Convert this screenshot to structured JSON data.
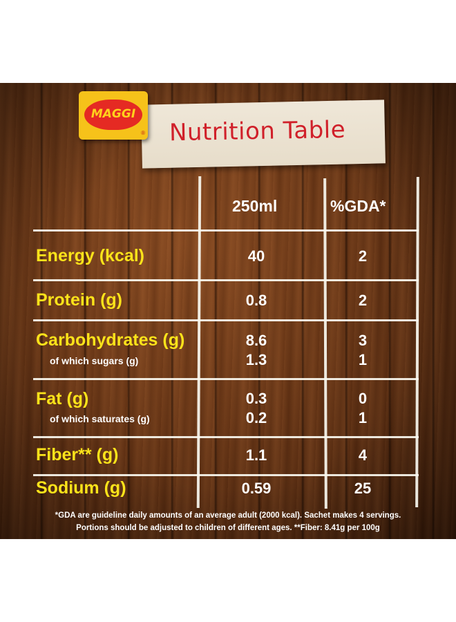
{
  "brand": {
    "logo_text": "MAGGI",
    "trademark": "®"
  },
  "title": "Nutrition Table",
  "columns": {
    "col1": "250ml",
    "col2": "%GDA*"
  },
  "rows": [
    {
      "label": "Energy (kcal)",
      "v1": "40",
      "v2": "2"
    },
    {
      "label": "Protein (g)",
      "v1": "0.8",
      "v2": "2"
    },
    {
      "label": "Carbohydrates (g)",
      "v1": "8.6",
      "v2": "3"
    },
    {
      "label": "of which sugars (g)",
      "v1": "1.3",
      "v2": "1"
    },
    {
      "label": "Fat (g)",
      "v1": "0.3",
      "v2": "0"
    },
    {
      "label": "of which saturates (g)",
      "v1": "0.2",
      "v2": "1"
    },
    {
      "label": "Fiber** (g)",
      "v1": "1.1",
      "v2": "4"
    },
    {
      "label": "Sodium (g)",
      "v1": "0.59",
      "v2": "25"
    }
  ],
  "footnote": {
    "line1": "*GDA are guideline daily amounts of an average adult (2000 kcal). Sachet makes 4 servings.",
    "line2": "Portions should be adjusted to children of different ages. **Fiber: 8.41g per 100g"
  },
  "colors": {
    "title_red": "#d0202a",
    "label_yellow": "#fbe31a",
    "logo_yellow": "#f6c21a",
    "logo_red": "#e52a23"
  }
}
